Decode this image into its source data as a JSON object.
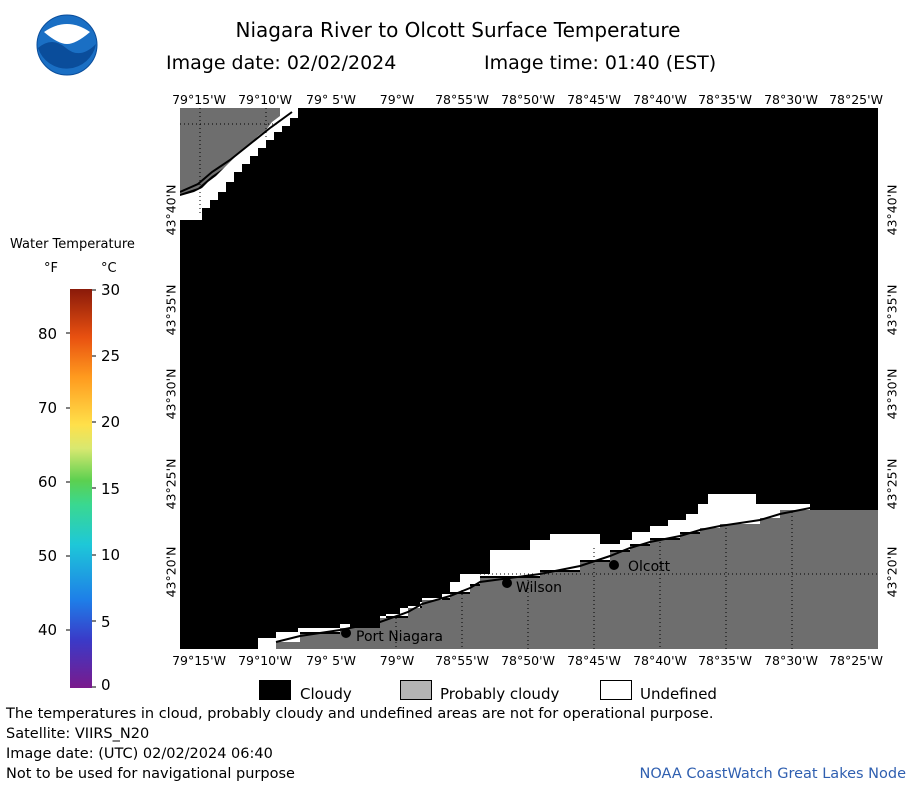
{
  "header": {
    "title": "Niagara River to Olcott Surface Temperature",
    "date_line": "Image date: 02/02/2024",
    "time_line": "Image time: 01:40 (EST)"
  },
  "colors": {
    "cloudy": "#000000",
    "probably_cloudy": "#6e6e6e",
    "undefined": "#ffffff",
    "footer_link": "#2f5fb0"
  },
  "icons": {
    "logo": "noaa-logo"
  },
  "map": {
    "lon_top": [
      "79°15'W",
      "79°10'W",
      "79° 5'W",
      "79°W",
      "78°55'W",
      "78°50'W",
      "78°45'W",
      "78°40'W",
      "78°35'W",
      "78°30'W",
      "78°25'W"
    ],
    "lon_bottom": [
      "79°15'W",
      "79°10'W",
      "79° 5'W",
      "79°W",
      "78°55'W",
      "78°50'W",
      "78°45'W",
      "78°40'W",
      "78°35'W",
      "78°30'W",
      "78°25'W"
    ],
    "lat_left": [
      "43°40'N",
      "43°35'N",
      "43°30'N",
      "43°25'N",
      "43°20'N"
    ],
    "lat_right": [
      "43°40'N",
      "43°35'N",
      "43°30'N",
      "43°25'N",
      "43°20'N"
    ],
    "places": [
      {
        "name": "Port Niagara"
      },
      {
        "name": "Wilson"
      },
      {
        "name": "Olcott"
      }
    ]
  },
  "legend": {
    "title": "Water Temperature",
    "unit_f": "°F",
    "unit_c": "°C",
    "ticks_f": [
      "80",
      "70",
      "60",
      "50",
      "40"
    ],
    "ticks_c": [
      "30",
      "25",
      "20",
      "15",
      "10",
      "5",
      "0"
    ]
  },
  "key": {
    "cloudy": "Cloudy",
    "probably_cloudy": "Probably cloudy",
    "undefined": "Undefined"
  },
  "footer": {
    "note": "The temperatures in cloud, probably cloudy and undefined areas are not for operational purpose.",
    "satellite": "Satellite: VIIRS_N20",
    "utc_date": "Image date: (UTC) 02/02/2024  06:40",
    "nav_warning": "Not to be used for navigational purpose",
    "credit": "NOAA CoastWatch Great Lakes Node"
  }
}
